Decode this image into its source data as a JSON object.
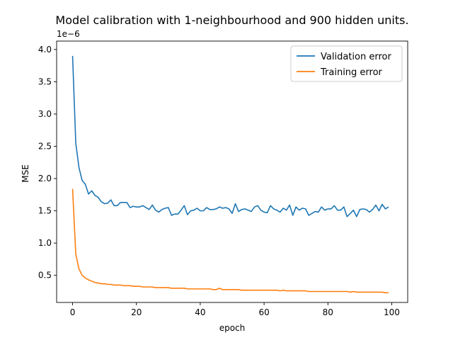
{
  "chart_data": {
    "type": "line",
    "title": "Model calibration with 1-neighbourhood and 900 hidden units.",
    "xlabel": "epoch",
    "ylabel": "MSE",
    "y_offset_label": "1e−6",
    "xlim": [
      -5,
      105
    ],
    "ylim": [
      0.08,
      4.13
    ],
    "xticks": [
      0,
      20,
      40,
      60,
      80,
      100
    ],
    "xtick_labels": [
      "0",
      "20",
      "40",
      "60",
      "80",
      "100"
    ],
    "yticks": [
      0.5,
      1.0,
      1.5,
      2.0,
      2.5,
      3.0,
      3.5,
      4.0
    ],
    "ytick_labels": [
      "0.5",
      "1.0",
      "1.5",
      "2.0",
      "2.5",
      "3.0",
      "3.5",
      "4.0"
    ],
    "grid": false,
    "legend_position": "top-right",
    "series": [
      {
        "name": "Validation error",
        "color": "#1f77b4",
        "values": [
          3.9,
          2.55,
          2.17,
          1.97,
          1.91,
          1.76,
          1.81,
          1.74,
          1.71,
          1.64,
          1.61,
          1.62,
          1.67,
          1.58,
          1.58,
          1.63,
          1.63,
          1.63,
          1.55,
          1.57,
          1.56,
          1.56,
          1.58,
          1.55,
          1.52,
          1.59,
          1.51,
          1.48,
          1.52,
          1.54,
          1.55,
          1.43,
          1.45,
          1.45,
          1.51,
          1.58,
          1.44,
          1.5,
          1.51,
          1.54,
          1.5,
          1.5,
          1.55,
          1.52,
          1.52,
          1.53,
          1.56,
          1.54,
          1.55,
          1.53,
          1.46,
          1.61,
          1.49,
          1.52,
          1.53,
          1.51,
          1.49,
          1.56,
          1.58,
          1.51,
          1.48,
          1.47,
          1.58,
          1.53,
          1.51,
          1.48,
          1.54,
          1.51,
          1.59,
          1.43,
          1.56,
          1.51,
          1.54,
          1.53,
          1.43,
          1.46,
          1.49,
          1.48,
          1.56,
          1.51,
          1.53,
          1.53,
          1.58,
          1.51,
          1.51,
          1.56,
          1.41,
          1.46,
          1.51,
          1.41,
          1.52,
          1.53,
          1.52,
          1.48,
          1.52,
          1.59,
          1.5,
          1.6,
          1.53,
          1.56
        ]
      },
      {
        "name": "Training error",
        "color": "#ff7f0e",
        "values": [
          1.84,
          0.83,
          0.6,
          0.5,
          0.46,
          0.43,
          0.41,
          0.39,
          0.38,
          0.37,
          0.37,
          0.36,
          0.36,
          0.35,
          0.35,
          0.35,
          0.34,
          0.34,
          0.34,
          0.33,
          0.33,
          0.33,
          0.32,
          0.32,
          0.32,
          0.32,
          0.31,
          0.31,
          0.31,
          0.31,
          0.31,
          0.3,
          0.3,
          0.3,
          0.3,
          0.3,
          0.29,
          0.29,
          0.29,
          0.29,
          0.29,
          0.29,
          0.29,
          0.29,
          0.28,
          0.28,
          0.3,
          0.28,
          0.28,
          0.28,
          0.28,
          0.28,
          0.28,
          0.27,
          0.27,
          0.27,
          0.27,
          0.27,
          0.27,
          0.27,
          0.27,
          0.27,
          0.27,
          0.27,
          0.27,
          0.26,
          0.27,
          0.26,
          0.26,
          0.26,
          0.26,
          0.26,
          0.26,
          0.26,
          0.25,
          0.25,
          0.25,
          0.25,
          0.25,
          0.25,
          0.25,
          0.25,
          0.25,
          0.25,
          0.25,
          0.25,
          0.25,
          0.24,
          0.25,
          0.24,
          0.24,
          0.24,
          0.24,
          0.24,
          0.24,
          0.24,
          0.24,
          0.24,
          0.23,
          0.23
        ]
      }
    ]
  }
}
